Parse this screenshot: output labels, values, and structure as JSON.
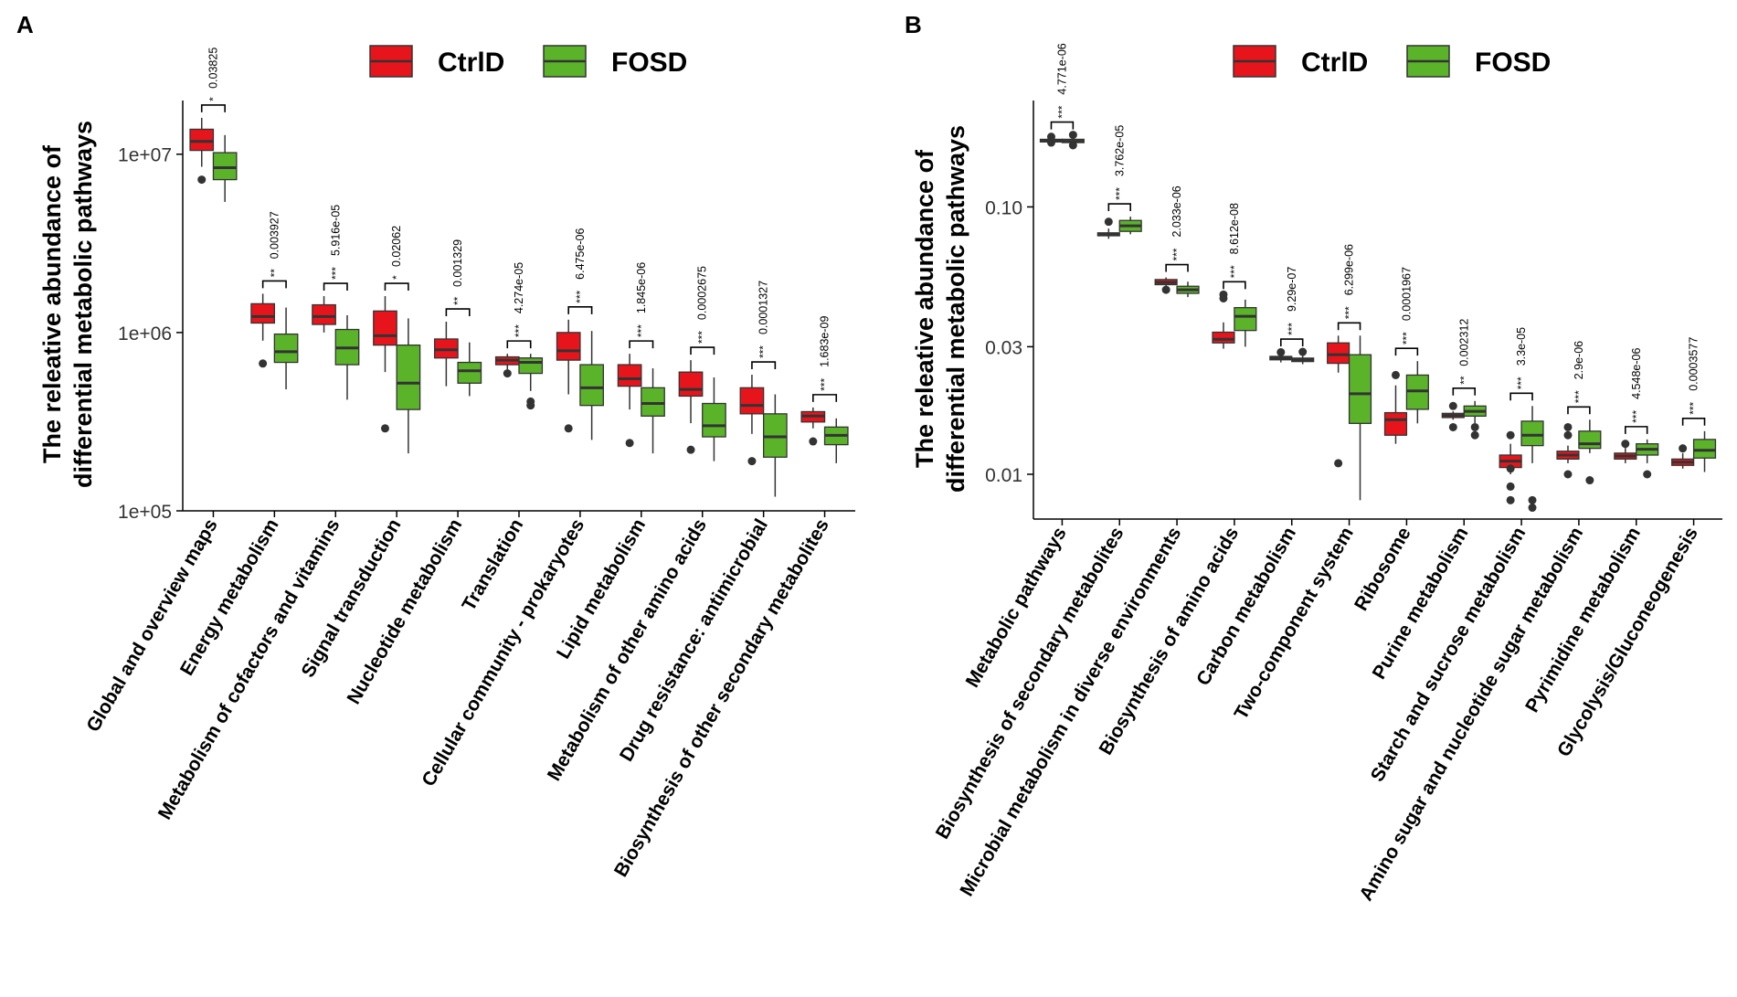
{
  "legend": {
    "groups": [
      {
        "name": "CtrlD",
        "color": "#e8141c"
      },
      {
        "name": "FOSD",
        "color": "#5bb32a"
      }
    ]
  },
  "chart_data": [
    {
      "panel": "A",
      "type": "boxplot",
      "scale": "log10",
      "ylabel_line1": "The releative abundance of",
      "ylabel_line2": "differential metabolic pathways",
      "ylim": [
        100000,
        20000000
      ],
      "yticks": [
        {
          "value": 100000,
          "label": "1e+05"
        },
        {
          "value": 1000000,
          "label": "1e+06"
        },
        {
          "value": 10000000,
          "label": "1e+07"
        }
      ],
      "categories": [
        {
          "label": "Global and overview maps",
          "sig": "*",
          "p": "0.03825",
          "ctrl": {
            "wlo": 8500000,
            "q1": 10500000,
            "med": 11800000,
            "q3": 13800000,
            "whi": 16000000,
            "out": [
              7200000
            ]
          },
          "fosd": {
            "wlo": 5400000,
            "q1": 7200000,
            "med": 8400000,
            "q3": 10200000,
            "whi": 12800000,
            "out": []
          }
        },
        {
          "label": "Energy metabolism",
          "sig": "**",
          "p": "0.003927",
          "ctrl": {
            "wlo": 900000,
            "q1": 1130000,
            "med": 1230000,
            "q3": 1450000,
            "whi": 1650000,
            "out": [
              670000
            ]
          },
          "fosd": {
            "wlo": 480000,
            "q1": 680000,
            "med": 780000,
            "q3": 980000,
            "whi": 1380000,
            "out": []
          }
        },
        {
          "label": "Metabolism of cofactors and vitamins",
          "sig": "***",
          "p": "5.916e-05",
          "ctrl": {
            "wlo": 1000000,
            "q1": 1110000,
            "med": 1230000,
            "q3": 1430000,
            "whi": 1600000,
            "out": []
          },
          "fosd": {
            "wlo": 420000,
            "q1": 660000,
            "med": 820000,
            "q3": 1040000,
            "whi": 1250000,
            "out": []
          }
        },
        {
          "label": "Signal transduction",
          "sig": "*",
          "p": "0.02062",
          "ctrl": {
            "wlo": 600000,
            "q1": 850000,
            "med": 960000,
            "q3": 1320000,
            "whi": 1600000,
            "out": [
              290000
            ]
          },
          "fosd": {
            "wlo": 210000,
            "q1": 370000,
            "med": 520000,
            "q3": 850000,
            "whi": 1200000,
            "out": []
          }
        },
        {
          "label": "Nucleotide metabolism",
          "sig": "**",
          "p": "0.001329",
          "ctrl": {
            "wlo": 500000,
            "q1": 720000,
            "med": 800000,
            "q3": 920000,
            "whi": 1150000,
            "out": []
          },
          "fosd": {
            "wlo": 440000,
            "q1": 520000,
            "med": 610000,
            "q3": 680000,
            "whi": 880000,
            "out": []
          }
        },
        {
          "label": "Translation",
          "sig": "***",
          "p": "4.274e-05",
          "ctrl": {
            "wlo": 620000,
            "q1": 660000,
            "med": 700000,
            "q3": 730000,
            "whi": 760000,
            "out": [
              590000
            ]
          },
          "fosd": {
            "wlo": 470000,
            "q1": 590000,
            "med": 680000,
            "q3": 720000,
            "whi": 760000,
            "out": [
              410000,
              390000
            ]
          }
        },
        {
          "label": "Cellular community - prokaryotes",
          "sig": "***",
          "p": "6.475e-06",
          "ctrl": {
            "wlo": 450000,
            "q1": 700000,
            "med": 790000,
            "q3": 1000000,
            "whi": 1180000,
            "out": [
              290000
            ]
          },
          "fosd": {
            "wlo": 250000,
            "q1": 390000,
            "med": 490000,
            "q3": 660000,
            "whi": 1020000,
            "out": []
          }
        },
        {
          "label": "Lipid metabolism",
          "sig": "***",
          "p": "1.845e-06",
          "ctrl": {
            "wlo": 370000,
            "q1": 500000,
            "med": 550000,
            "q3": 660000,
            "whi": 760000,
            "out": [
              240000
            ]
          },
          "fosd": {
            "wlo": 210000,
            "q1": 340000,
            "med": 400000,
            "q3": 490000,
            "whi": 630000,
            "out": []
          }
        },
        {
          "label": "Metabolism of other amino acids",
          "sig": "***",
          "p": "0.0002675",
          "ctrl": {
            "wlo": 310000,
            "q1": 440000,
            "med": 480000,
            "q3": 600000,
            "whi": 700000,
            "out": [
              220000
            ]
          },
          "fosd": {
            "wlo": 190000,
            "q1": 260000,
            "med": 300000,
            "q3": 400000,
            "whi": 560000,
            "out": []
          }
        },
        {
          "label": "Drug resistance: antimicrobial",
          "sig": "***",
          "p": "0.0001327",
          "ctrl": {
            "wlo": 270000,
            "q1": 350000,
            "med": 390000,
            "q3": 490000,
            "whi": 580000,
            "out": [
              190000
            ]
          },
          "fosd": {
            "wlo": 120000,
            "q1": 200000,
            "med": 260000,
            "q3": 350000,
            "whi": 450000,
            "out": []
          }
        },
        {
          "label": "Biosynthesis of other secondary metabolites",
          "sig": "***",
          "p": "1.683e-09",
          "ctrl": {
            "wlo": 290000,
            "q1": 315000,
            "med": 340000,
            "q3": 360000,
            "whi": 380000,
            "out": [
              245000
            ]
          },
          "fosd": {
            "wlo": 185000,
            "q1": 235000,
            "med": 265000,
            "q3": 295000,
            "whi": 330000,
            "out": []
          }
        }
      ]
    },
    {
      "panel": "B",
      "type": "boxplot",
      "scale": "log10",
      "ylabel_line1": "The releative abundance of",
      "ylabel_line2": "differential metabolic pathways",
      "ylim": [
        0.0068,
        0.25
      ],
      "yticks": [
        {
          "value": 0.01,
          "label": "0.01"
        },
        {
          "value": 0.03,
          "label": "0.03"
        },
        {
          "value": 0.1,
          "label": "0.10"
        }
      ],
      "categories": [
        {
          "label": "Metabolic pathways",
          "sig": "***",
          "p": "4.771e-06",
          "ctrl": {
            "wlo": 0.172,
            "q1": 0.175,
            "med": 0.177,
            "q3": 0.179,
            "whi": 0.181,
            "out": [
              0.183,
              0.174
            ]
          },
          "fosd": {
            "wlo": 0.17,
            "q1": 0.174,
            "med": 0.176,
            "q3": 0.179,
            "whi": 0.183,
            "out": [
              0.186,
              0.17
            ]
          }
        },
        {
          "label": "Biosynthesis of secondary metabolites",
          "sig": "***",
          "p": "3.762e-05",
          "ctrl": {
            "wlo": 0.076,
            "q1": 0.078,
            "med": 0.079,
            "q3": 0.08,
            "whi": 0.083,
            "out": [
              0.088
            ]
          },
          "fosd": {
            "wlo": 0.079,
            "q1": 0.081,
            "med": 0.085,
            "q3": 0.089,
            "whi": 0.092,
            "out": []
          }
        },
        {
          "label": "Microbial metabolism in diverse environments",
          "sig": "***",
          "p": "2.033e-06",
          "ctrl": {
            "wlo": 0.05,
            "q1": 0.0512,
            "med": 0.0522,
            "q3": 0.0535,
            "whi": 0.0545,
            "out": [
              0.049
            ]
          },
          "fosd": {
            "wlo": 0.046,
            "q1": 0.0475,
            "med": 0.049,
            "q3": 0.0505,
            "whi": 0.0525,
            "out": []
          }
        },
        {
          "label": "Biosynthesis of amino acids",
          "sig": "***",
          "p": "8.612e-08",
          "ctrl": {
            "wlo": 0.0295,
            "q1": 0.031,
            "med": 0.032,
            "q3": 0.034,
            "whi": 0.037,
            "out": [
              0.0455,
              0.047
            ]
          },
          "fosd": {
            "wlo": 0.03,
            "q1": 0.0345,
            "med": 0.039,
            "q3": 0.042,
            "whi": 0.045,
            "out": []
          }
        },
        {
          "label": "Carbon metabolism",
          "sig": "***",
          "p": "9.29e-07",
          "ctrl": {
            "wlo": 0.0262,
            "q1": 0.0268,
            "med": 0.0272,
            "q3": 0.0276,
            "whi": 0.0282,
            "out": [
              0.0286
            ]
          },
          "fosd": {
            "wlo": 0.0258,
            "q1": 0.0264,
            "med": 0.0268,
            "q3": 0.0272,
            "whi": 0.028,
            "out": [
              0.0287
            ]
          }
        },
        {
          "label": "Two-component system",
          "sig": "***",
          "p": "6.299e-06",
          "ctrl": {
            "wlo": 0.024,
            "q1": 0.026,
            "med": 0.028,
            "q3": 0.031,
            "whi": 0.033,
            "out": [
              0.011
            ]
          },
          "fosd": {
            "wlo": 0.008,
            "q1": 0.0155,
            "med": 0.02,
            "q3": 0.028,
            "whi": 0.033,
            "out": []
          }
        },
        {
          "label": "Ribosome",
          "sig": "***",
          "p": "0.0001967",
          "ctrl": {
            "wlo": 0.013,
            "q1": 0.014,
            "med": 0.016,
            "q3": 0.017,
            "whi": 0.0215,
            "out": [
              0.0235
            ]
          },
          "fosd": {
            "wlo": 0.0155,
            "q1": 0.0175,
            "med": 0.0205,
            "q3": 0.0235,
            "whi": 0.0265,
            "out": []
          }
        },
        {
          "label": "Purine metabolism",
          "sig": "**",
          "p": "0.002312",
          "ctrl": {
            "wlo": 0.016,
            "q1": 0.0163,
            "med": 0.0166,
            "q3": 0.0169,
            "whi": 0.0172,
            "out": [
              0.015,
              0.018
            ]
          },
          "fosd": {
            "wlo": 0.0155,
            "q1": 0.0165,
            "med": 0.0172,
            "q3": 0.018,
            "whi": 0.0188,
            "out": [
              0.014,
              0.015
            ]
          }
        },
        {
          "label": "Starch and sucrose metabolism",
          "sig": "***",
          "p": "3.3e-05",
          "ctrl": {
            "wlo": 0.01,
            "q1": 0.0106,
            "med": 0.0112,
            "q3": 0.0118,
            "whi": 0.013,
            "out": [
              0.008,
              0.009,
              0.0105,
              0.014
            ]
          },
          "fosd": {
            "wlo": 0.011,
            "q1": 0.0128,
            "med": 0.014,
            "q3": 0.0158,
            "whi": 0.018,
            "out": [
              0.0075,
              0.008
            ]
          }
        },
        {
          "label": "Amino sugar and nucleotide sugar metabolism",
          "sig": "***",
          "p": "2.9e-06",
          "ctrl": {
            "wlo": 0.011,
            "q1": 0.0114,
            "med": 0.0118,
            "q3": 0.0122,
            "whi": 0.0128,
            "out": [
              0.01,
              0.014,
              0.015
            ]
          },
          "fosd": {
            "wlo": 0.012,
            "q1": 0.0125,
            "med": 0.013,
            "q3": 0.0145,
            "whi": 0.016,
            "out": [
              0.0095
            ]
          }
        },
        {
          "label": "Pyrimidine metabolism",
          "sig": "***",
          "p": "4.548e-06",
          "ctrl": {
            "wlo": 0.011,
            "q1": 0.0114,
            "med": 0.0117,
            "q3": 0.012,
            "whi": 0.0126,
            "out": [
              0.013
            ]
          },
          "fosd": {
            "wlo": 0.011,
            "q1": 0.0118,
            "med": 0.0124,
            "q3": 0.013,
            "whi": 0.0135,
            "out": [
              0.01
            ]
          }
        },
        {
          "label": "Glycolysis/Gluconeogenesis",
          "sig": "***",
          "p": "0.0003577",
          "ctrl": {
            "wlo": 0.0105,
            "q1": 0.0108,
            "med": 0.0111,
            "q3": 0.0114,
            "whi": 0.012,
            "out": [
              0.0125
            ]
          },
          "fosd": {
            "wlo": 0.0102,
            "q1": 0.0115,
            "med": 0.0123,
            "q3": 0.0135,
            "whi": 0.0145,
            "out": []
          }
        }
      ]
    }
  ]
}
